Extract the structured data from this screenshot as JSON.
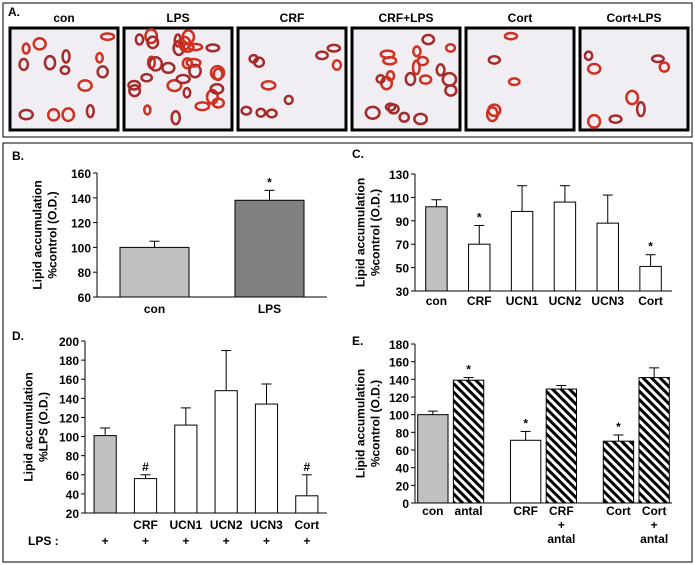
{
  "panel_a": {
    "label": "A.",
    "images": [
      "con",
      "LPS",
      "CRF",
      "CRF+LPS",
      "Cort",
      "Cort+LPS"
    ]
  },
  "chart_data": [
    {
      "type": "bar",
      "panel_label": "B.",
      "y_label": [
        "Lipid accumulation",
        "%control (O.D.)"
      ],
      "categories": [
        "con",
        "LPS"
      ],
      "values": [
        100,
        138
      ],
      "errors": [
        5,
        8
      ],
      "colors": [
        "#c0c0c0",
        "#808080"
      ],
      "hatched": [
        false,
        false
      ],
      "annotations": [
        {
          "index": 1,
          "text": "*"
        }
      ],
      "ylim": [
        60,
        160
      ],
      "yticks": [
        60,
        80,
        100,
        120,
        140,
        160
      ]
    },
    {
      "type": "bar",
      "panel_label": "C.",
      "y_label": [
        "Lipid accumulation",
        "%control (O.D.)"
      ],
      "categories": [
        "con",
        "CRF",
        "UCN1",
        "UCN2",
        "UCN3",
        "Cort"
      ],
      "values": [
        102,
        70,
        98,
        106,
        88,
        51
      ],
      "errors": [
        6,
        16,
        22,
        14,
        24,
        10
      ],
      "colors": [
        "#c0c0c0",
        "#ffffff",
        "#ffffff",
        "#ffffff",
        "#ffffff",
        "#ffffff"
      ],
      "hatched": [
        false,
        false,
        false,
        false,
        false,
        false
      ],
      "annotations": [
        {
          "index": 1,
          "text": "*"
        },
        {
          "index": 5,
          "text": "*"
        }
      ],
      "ylim": [
        30,
        130
      ],
      "yticks": [
        30,
        50,
        70,
        90,
        110,
        130
      ]
    },
    {
      "type": "bar",
      "panel_label": "D.",
      "y_label": [
        "Lipid accumulation",
        "%LPS (O.D.)"
      ],
      "categories": [
        null,
        "CRF",
        "UCN1",
        "UCN2",
        "UCN3",
        "Cort"
      ],
      "values": [
        101,
        56,
        112,
        148,
        134,
        38
      ],
      "errors": [
        8,
        4,
        18,
        42,
        21,
        22
      ],
      "colors": [
        "#c0c0c0",
        "#ffffff",
        "#ffffff",
        "#ffffff",
        "#ffffff",
        "#ffffff"
      ],
      "hatched": [
        false,
        false,
        false,
        false,
        false,
        false
      ],
      "annotations": [
        {
          "index": 1,
          "text": "#"
        },
        {
          "index": 5,
          "text": "#"
        }
      ],
      "row_label": "LPS :",
      "row_values": [
        "+",
        "+",
        "+",
        "+",
        "+",
        "+"
      ],
      "ylim": [
        20,
        200
      ],
      "yticks": [
        20,
        40,
        60,
        80,
        100,
        120,
        140,
        160,
        180,
        200
      ]
    },
    {
      "type": "bar",
      "panel_label": "E.",
      "y_label": [
        "Lipid accumulation",
        "%control (O.D.)"
      ],
      "categories": [
        "con",
        "antal",
        "CRF",
        "CRF\n+\nantal",
        "Cort",
        "Cort\n+\nantal"
      ],
      "values": [
        100,
        139,
        71,
        129,
        70,
        142
      ],
      "errors": [
        4,
        3,
        10,
        4,
        7,
        11
      ],
      "colors": [
        "#c0c0c0",
        "#808080",
        "#ffffff",
        "#d8d8d8",
        "#d8d8d8",
        "#808080"
      ],
      "hatched": [
        false,
        true,
        false,
        true,
        true,
        true
      ],
      "annotations": [
        {
          "index": 1,
          "text": "*"
        },
        {
          "index": 2,
          "text": "*"
        },
        {
          "index": 4,
          "text": "*"
        }
      ],
      "ylim": [
        0,
        180
      ],
      "yticks": [
        0,
        20,
        40,
        60,
        80,
        100,
        120,
        140,
        160,
        180
      ]
    }
  ]
}
